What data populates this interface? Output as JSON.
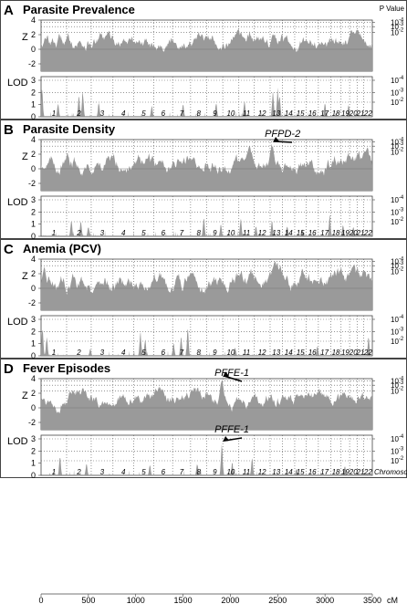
{
  "figure": {
    "pvalue_header": "P Value",
    "x_unit": "cM",
    "chromosome_label": "Chromosome",
    "x_ticks": [
      "0",
      "500",
      "1000",
      "1500",
      "2000",
      "2500",
      "3000",
      "3500"
    ],
    "colors": {
      "fill": "#9a9a9a",
      "frame": "#444444",
      "guide": "#555555",
      "panel_bg": "#ffffff"
    }
  },
  "chart_data": {
    "type": "area",
    "x_range_cM": [
      0,
      3500
    ],
    "grid": "dotted vertical lines at chromosome boundaries; dotted horizontal lines at significance thresholds",
    "chromosomes": {
      "labels": [
        "1",
        "2",
        "3",
        "4",
        "5",
        "6",
        "7",
        "8",
        "9",
        "10",
        "11",
        "12",
        "13",
        "14",
        "15",
        "16",
        "17",
        "18",
        "19",
        "20",
        "21",
        "22"
      ],
      "boundaries_cM": [
        0,
        270,
        530,
        760,
        980,
        1190,
        1390,
        1580,
        1750,
        1920,
        2090,
        2250,
        2420,
        2550,
        2680,
        2800,
        2930,
        3060,
        3170,
        3260,
        3340,
        3410,
        3500
      ]
    },
    "panels": [
      {
        "letter": "A",
        "title": "Parasite Prevalence",
        "z_track": {
          "ylabel": "Z",
          "ylim": [
            -3,
            4
          ],
          "ticks": [
            "4",
            "2",
            "0",
            "-2"
          ],
          "pvalue_ticks": [
            "10-4",
            "10-3",
            "10-2"
          ],
          "mean_level": 1.1,
          "variation": 1.2,
          "peaks": []
        },
        "lod_track": {
          "ylabel": "LOD",
          "ylim": [
            0,
            3.3
          ],
          "ticks": [
            "3",
            "2",
            "1",
            "0"
          ],
          "pvalue_ticks": [
            "10-4",
            "10-3",
            "10-2"
          ],
          "peaks": [
            {
              "x": 10,
              "h": 2.3
            },
            {
              "x": 180,
              "h": 1.1
            },
            {
              "x": 400,
              "h": 1.8
            },
            {
              "x": 440,
              "h": 2.2
            },
            {
              "x": 610,
              "h": 1.2
            },
            {
              "x": 1170,
              "h": 0.9
            },
            {
              "x": 1500,
              "h": 1.1
            },
            {
              "x": 1850,
              "h": 1.2
            },
            {
              "x": 2150,
              "h": 1.4
            },
            {
              "x": 2450,
              "h": 2.2
            },
            {
              "x": 2500,
              "h": 2.4
            },
            {
              "x": 2520,
              "h": 1.8
            },
            {
              "x": 3000,
              "h": 1.2
            },
            {
              "x": 3250,
              "h": 1.0
            }
          ]
        },
        "annotations": []
      },
      {
        "letter": "B",
        "title": "Parasite Density",
        "z_track": {
          "ylabel": "Z",
          "ylim": [
            -3,
            4
          ],
          "ticks": [
            "4",
            "2",
            "0",
            "-2"
          ],
          "pvalue_ticks": [
            "10-4",
            "10-3",
            "10-2"
          ],
          "mean_level": 0.8,
          "variation": 1.3,
          "peaks": [
            {
              "x": 2440,
              "h": 3.5
            }
          ]
        },
        "lod_track": {
          "ylabel": "LOD",
          "ylim": [
            0,
            3.3
          ],
          "ticks": [
            "3",
            "2",
            "1",
            "0"
          ],
          "pvalue_ticks": [
            "10-4",
            "10-3",
            "10-2"
          ],
          "peaks": [
            {
              "x": 320,
              "h": 1.4
            },
            {
              "x": 420,
              "h": 1.3
            },
            {
              "x": 500,
              "h": 0.8
            },
            {
              "x": 1720,
              "h": 1.6
            },
            {
              "x": 1900,
              "h": 1.0
            },
            {
              "x": 2110,
              "h": 1.5
            },
            {
              "x": 2270,
              "h": 0.9
            },
            {
              "x": 2440,
              "h": 1.3
            },
            {
              "x": 2600,
              "h": 0.9
            },
            {
              "x": 2760,
              "h": 0.6
            },
            {
              "x": 3050,
              "h": 1.8
            },
            {
              "x": 3190,
              "h": 1.0
            },
            {
              "x": 3300,
              "h": 0.8
            }
          ]
        },
        "annotations": [
          {
            "text": "PFPD-2",
            "x": 2440,
            "track": "z"
          }
        ]
      },
      {
        "letter": "C",
        "title": "Anemia (PCV)",
        "z_track": {
          "ylabel": "Z",
          "ylim": [
            -3,
            4
          ],
          "ticks": [
            "4",
            "2",
            "0",
            "-2"
          ],
          "pvalue_ticks": [
            "10-4",
            "10-3",
            "10-2"
          ],
          "mean_level": 0.9,
          "variation": 1.4,
          "peaks": []
        },
        "lod_track": {
          "ylabel": "LOD",
          "ylim": [
            0,
            3.3
          ],
          "ticks": [
            "3",
            "2",
            "1",
            "0"
          ],
          "pvalue_ticks": [
            "10-4",
            "10-3",
            "10-2"
          ],
          "peaks": [
            {
              "x": 15,
              "h": 2.4
            },
            {
              "x": 60,
              "h": 1.6
            },
            {
              "x": 520,
              "h": 0.6
            },
            {
              "x": 1050,
              "h": 2.0
            },
            {
              "x": 1100,
              "h": 1.4
            },
            {
              "x": 1400,
              "h": 1.1
            },
            {
              "x": 1480,
              "h": 1.7
            },
            {
              "x": 1550,
              "h": 2.3
            },
            {
              "x": 2050,
              "h": 0.7
            },
            {
              "x": 2920,
              "h": 0.8
            },
            {
              "x": 3460,
              "h": 1.6
            }
          ]
        },
        "annotations": []
      },
      {
        "letter": "D",
        "title": "Fever Episodes",
        "z_track": {
          "ylabel": "Z",
          "ylim": [
            -3,
            4
          ],
          "ticks": [
            "4",
            "2",
            "0",
            "-2"
          ],
          "pvalue_ticks": [
            "10-4",
            "10-3",
            "10-2"
          ],
          "mean_level": 1.2,
          "variation": 1.2,
          "peaks": [
            {
              "x": 1910,
              "h": 4.1
            }
          ]
        },
        "lod_track": {
          "ylabel": "LOD",
          "ylim": [
            0,
            3.3
          ],
          "ticks": [
            "3",
            "2",
            "1",
            "0"
          ],
          "pvalue_ticks": [
            "10-4",
            "10-3",
            "10-2"
          ],
          "peaks": [
            {
              "x": 200,
              "h": 1.6
            },
            {
              "x": 480,
              "h": 1.0
            },
            {
              "x": 1150,
              "h": 0.9
            },
            {
              "x": 1650,
              "h": 1.0
            },
            {
              "x": 1910,
              "h": 2.7
            },
            {
              "x": 2020,
              "h": 1.1
            },
            {
              "x": 2230,
              "h": 1.5
            },
            {
              "x": 2700,
              "h": 0.6
            },
            {
              "x": 3210,
              "h": 0.8
            }
          ]
        },
        "annotations": [
          {
            "text": "PFFE-1",
            "x": 1910,
            "track": "z"
          },
          {
            "text": "PFFE-1",
            "x": 1910,
            "track": "lod"
          }
        ]
      }
    ]
  }
}
